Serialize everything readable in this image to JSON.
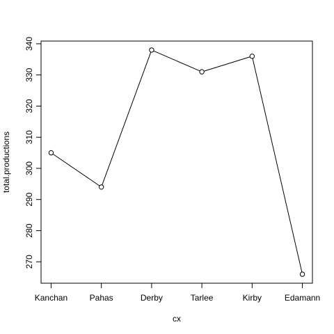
{
  "chart_data": {
    "type": "line",
    "categories": [
      "Kanchan",
      "Pahas",
      "Derby",
      "Tarlee",
      "Kirby",
      "Edamann"
    ],
    "values": [
      305,
      294,
      338,
      331,
      336,
      266
    ],
    "xlabel": "cx",
    "ylabel": "total.productions",
    "yticks": [
      270,
      280,
      290,
      300,
      310,
      320,
      330,
      340
    ],
    "ylim": [
      263.12,
      340.88
    ],
    "markers": "open-circle",
    "grid": false,
    "colors": {
      "line": "#000000",
      "marker": "#000000",
      "background": "#ffffff"
    }
  }
}
